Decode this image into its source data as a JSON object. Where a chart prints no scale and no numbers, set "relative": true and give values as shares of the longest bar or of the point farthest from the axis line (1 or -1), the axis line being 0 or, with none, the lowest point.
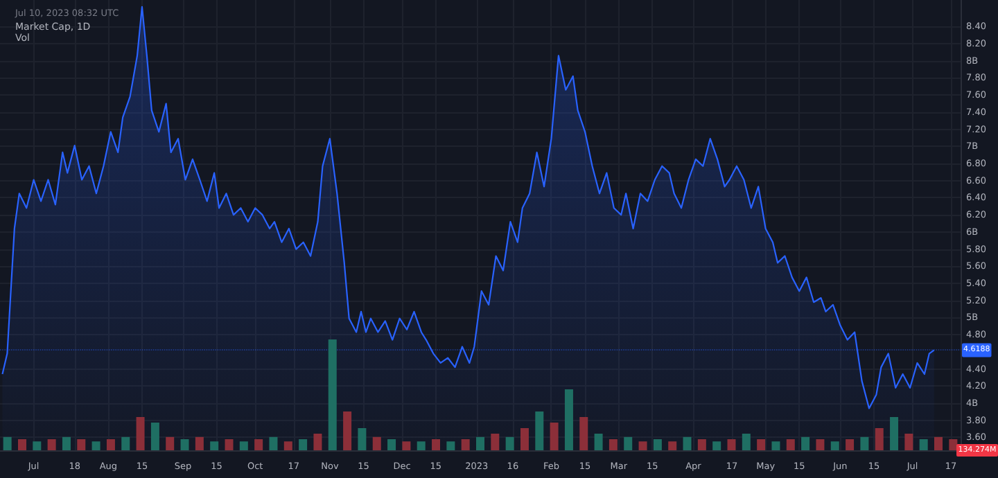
{
  "chart_data": [
    {
      "type": "area",
      "title": "Market Cap, 1D",
      "annotations": [
        "Jul 10, 2023 08:32 UTC"
      ],
      "ref_lines": [
        {
          "axis": "y",
          "value": 4.6188,
          "label": "4.6188",
          "color": "#2962ff",
          "line_style": "dotted"
        }
      ],
      "x": [
        "2022-06-18",
        "2022-06-20",
        "2022-06-23",
        "2022-06-25",
        "2022-06-28",
        "2022-07-01",
        "2022-07-04",
        "2022-07-07",
        "2022-07-10",
        "2022-07-13",
        "2022-07-15",
        "2022-07-18",
        "2022-07-21",
        "2022-07-24",
        "2022-07-27",
        "2022-07-30",
        "2022-08-02",
        "2022-08-05",
        "2022-08-07",
        "2022-08-10",
        "2022-08-13",
        "2022-08-15",
        "2022-08-17",
        "2022-08-19",
        "2022-08-22",
        "2022-08-25",
        "2022-08-27",
        "2022-08-30",
        "2022-09-02",
        "2022-09-05",
        "2022-09-08",
        "2022-09-11",
        "2022-09-14",
        "2022-09-16",
        "2022-09-19",
        "2022-09-22",
        "2022-09-25",
        "2022-09-28",
        "2022-10-01",
        "2022-10-04",
        "2022-10-07",
        "2022-10-09",
        "2022-10-12",
        "2022-10-15",
        "2022-10-18",
        "2022-10-21",
        "2022-10-24",
        "2022-10-27",
        "2022-10-29",
        "2022-11-01",
        "2022-11-04",
        "2022-11-07",
        "2022-11-09",
        "2022-11-12",
        "2022-11-14",
        "2022-11-16",
        "2022-11-18",
        "2022-11-21",
        "2022-11-24",
        "2022-11-27",
        "2022-11-30",
        "2022-12-03",
        "2022-12-06",
        "2022-12-09",
        "2022-12-11",
        "2022-12-14",
        "2022-12-17",
        "2022-12-20",
        "2022-12-23",
        "2022-12-26",
        "2022-12-29",
        "2022-12-31",
        "2023-01-03",
        "2023-01-06",
        "2023-01-09",
        "2023-01-12",
        "2023-01-15",
        "2023-01-18",
        "2023-01-20",
        "2023-01-23",
        "2023-01-26",
        "2023-01-29",
        "2023-02-01",
        "2023-02-04",
        "2023-02-07",
        "2023-02-10",
        "2023-02-12",
        "2023-02-15",
        "2023-02-18",
        "2023-02-21",
        "2023-02-24",
        "2023-02-27",
        "2023-03-02",
        "2023-03-04",
        "2023-03-07",
        "2023-03-10",
        "2023-03-13",
        "2023-03-16",
        "2023-03-19",
        "2023-03-22",
        "2023-03-24",
        "2023-03-27",
        "2023-03-30",
        "2023-04-02",
        "2023-04-05",
        "2023-04-08",
        "2023-04-11",
        "2023-04-14",
        "2023-04-16",
        "2023-04-19",
        "2023-04-22",
        "2023-04-25",
        "2023-04-28",
        "2023-05-01",
        "2023-05-04",
        "2023-05-06",
        "2023-05-09",
        "2023-05-12",
        "2023-05-15",
        "2023-05-18",
        "2023-05-21",
        "2023-05-24",
        "2023-05-26",
        "2023-05-29",
        "2023-06-01",
        "2023-06-04",
        "2023-06-07",
        "2023-06-10",
        "2023-06-13",
        "2023-06-16",
        "2023-06-18",
        "2023-06-21",
        "2023-06-24",
        "2023-06-27",
        "2023-06-30",
        "2023-07-03",
        "2023-07-06",
        "2023-07-08",
        "2023-07-10"
      ],
      "series": [
        {
          "color": "#2962ff",
          "values": [
            4.34,
            4.58,
            6.04,
            6.45,
            6.28,
            6.61,
            6.36,
            6.61,
            6.32,
            6.93,
            6.69,
            7.01,
            6.61,
            6.77,
            6.45,
            6.77,
            7.17,
            6.93,
            7.34,
            7.58,
            8.06,
            8.63,
            8.06,
            7.42,
            7.17,
            7.5,
            6.93,
            7.09,
            6.61,
            6.85,
            6.61,
            6.36,
            6.69,
            6.28,
            6.45,
            6.2,
            6.28,
            6.12,
            6.28,
            6.2,
            6.04,
            6.12,
            5.88,
            6.04,
            5.8,
            5.88,
            5.72,
            6.12,
            6.77,
            7.09,
            6.45,
            5.64,
            4.99,
            4.83,
            5.07,
            4.83,
            4.99,
            4.83,
            4.96,
            4.74,
            4.99,
            4.86,
            5.07,
            4.83,
            4.74,
            4.58,
            4.47,
            4.53,
            4.42,
            4.66,
            4.47,
            4.66,
            5.31,
            5.15,
            5.72,
            5.55,
            6.12,
            5.88,
            6.28,
            6.45,
            6.93,
            6.53,
            7.09,
            8.06,
            7.66,
            7.82,
            7.42,
            7.17,
            6.77,
            6.45,
            6.69,
            6.28,
            6.2,
            6.45,
            6.04,
            6.45,
            6.36,
            6.61,
            6.77,
            6.69,
            6.45,
            6.28,
            6.61,
            6.85,
            6.77,
            7.09,
            6.85,
            6.53,
            6.61,
            6.77,
            6.61,
            6.28,
            6.53,
            6.04,
            5.88,
            5.64,
            5.72,
            5.47,
            5.31,
            5.47,
            5.18,
            5.23,
            5.07,
            5.15,
            4.91,
            4.74,
            4.83,
            4.26,
            3.94,
            4.1,
            4.42,
            4.58,
            4.18,
            4.34,
            4.18,
            4.47,
            4.34,
            4.58,
            4.62
          ]
        }
      ],
      "xlim": [
        "2022-06-17",
        "2023-07-21"
      ],
      "xticks": [
        {
          "value": "2022-07-01",
          "label": "Jul"
        },
        {
          "value": "2022-07-18",
          "label": "18"
        },
        {
          "value": "2022-08-01",
          "label": "Aug"
        },
        {
          "value": "2022-08-15",
          "label": "15"
        },
        {
          "value": "2022-09-01",
          "label": "Sep"
        },
        {
          "value": "2022-09-15",
          "label": "15"
        },
        {
          "value": "2022-10-01",
          "label": "Oct"
        },
        {
          "value": "2022-10-17",
          "label": "17"
        },
        {
          "value": "2022-11-01",
          "label": "Nov"
        },
        {
          "value": "2022-11-15",
          "label": "15"
        },
        {
          "value": "2022-12-01",
          "label": "Dec"
        },
        {
          "value": "2022-12-15",
          "label": "15"
        },
        {
          "value": "2023-01-01",
          "label": "2023"
        },
        {
          "value": "2023-01-16",
          "label": "16"
        },
        {
          "value": "2023-02-01",
          "label": "Feb"
        },
        {
          "value": "2023-02-15",
          "label": "15"
        },
        {
          "value": "2023-03-01",
          "label": "Mar"
        },
        {
          "value": "2023-03-15",
          "label": "15"
        },
        {
          "value": "2023-04-01",
          "label": "Apr"
        },
        {
          "value": "2023-04-17",
          "label": "17"
        },
        {
          "value": "2023-05-01",
          "label": "May"
        },
        {
          "value": "2023-05-15",
          "label": "15"
        },
        {
          "value": "2023-06-01",
          "label": "Jun"
        },
        {
          "value": "2023-06-15",
          "label": "15"
        },
        {
          "value": "2023-07-01",
          "label": "Jul"
        },
        {
          "value": "2023-07-17",
          "label": "17"
        }
      ],
      "ylim": [
        3.45,
        8.71
      ],
      "yticks": [
        {
          "value": 3.6,
          "label": "3.60"
        },
        {
          "value": 3.8,
          "label": "3.80"
        },
        {
          "value": 4,
          "label": "4B"
        },
        {
          "value": 4.2,
          "label": "4.20"
        },
        {
          "value": 4.4,
          "label": "4.40"
        },
        {
          "value": 4.8,
          "label": "4.80"
        },
        {
          "value": 5,
          "label": "5B"
        },
        {
          "value": 5.2,
          "label": "5.20"
        },
        {
          "value": 5.4,
          "label": "5.40"
        },
        {
          "value": 5.6,
          "label": "5.60"
        },
        {
          "value": 5.8,
          "label": "5.80"
        },
        {
          "value": 6,
          "label": "6B"
        },
        {
          "value": 6.2,
          "label": "6.20"
        },
        {
          "value": 6.4,
          "label": "6.40"
        },
        {
          "value": 6.6,
          "label": "6.60"
        },
        {
          "value": 6.8,
          "label": "6.80"
        },
        {
          "value": 7,
          "label": "7B"
        },
        {
          "value": 7.2,
          "label": "7.20"
        },
        {
          "value": 7.4,
          "label": "7.40"
        },
        {
          "value": 7.6,
          "label": "7.60"
        },
        {
          "value": 7.8,
          "label": "7.80"
        },
        {
          "value": 8,
          "label": "8B"
        },
        {
          "value": 8.2,
          "label": "8.20"
        },
        {
          "value": 8.4,
          "label": "8.40"
        }
      ],
      "grid": true
    },
    {
      "type": "bar",
      "title": "Vol",
      "relative": true,
      "annotations": [
        "134.274M"
      ],
      "categories": [
        null,
        null,
        null,
        null,
        null,
        null,
        null,
        null,
        null,
        null,
        null,
        null,
        null,
        null,
        null,
        null,
        null,
        null,
        null,
        null,
        null,
        null,
        null,
        null,
        null,
        null,
        null,
        null,
        null,
        null,
        null,
        null,
        null,
        null,
        null,
        null,
        null,
        null,
        null,
        null,
        null,
        null,
        null,
        null,
        null,
        null,
        null,
        null,
        null,
        null,
        null,
        null,
        null,
        null,
        null,
        null,
        null,
        null,
        null,
        null,
        null,
        null,
        null,
        null,
        null
      ],
      "values": [
        0.12,
        0.1,
        0.08,
        0.1,
        0.12,
        0.1,
        0.08,
        0.1,
        0.12,
        0.3,
        0.25,
        0.12,
        0.1,
        0.12,
        0.08,
        0.1,
        0.08,
        0.1,
        0.12,
        0.08,
        0.1,
        0.15,
        1,
        0.35,
        0.2,
        0.12,
        0.1,
        0.08,
        0.08,
        0.1,
        0.08,
        0.1,
        0.12,
        0.15,
        0.12,
        0.2,
        0.35,
        0.25,
        0.55,
        0.3,
        0.15,
        0.1,
        0.12,
        0.08,
        0.1,
        0.08,
        0.12,
        0.1,
        0.08,
        0.1,
        0.15,
        0.1,
        0.08,
        0.1,
        0.12,
        0.1,
        0.08,
        0.1,
        0.12,
        0.2,
        0.3,
        0.15,
        0.1,
        0.12,
        0.1
      ],
      "colors": [
        "#1f6f63",
        "#8c2f39",
        "#1f6f63",
        "#8c2f39",
        "#1f6f63",
        "#8c2f39",
        "#1f6f63",
        "#8c2f39",
        "#1f6f63",
        "#8c2f39",
        "#1f6f63",
        "#8c2f39",
        "#1f6f63",
        "#8c2f39",
        "#1f6f63",
        "#8c2f39",
        "#1f6f63",
        "#8c2f39",
        "#1f6f63",
        "#8c2f39",
        "#1f6f63",
        "#8c2f39",
        "#1f6f63",
        "#8c2f39",
        "#1f6f63",
        "#8c2f39",
        "#1f6f63",
        "#8c2f39",
        "#1f6f63",
        "#8c2f39",
        "#1f6f63",
        "#8c2f39",
        "#1f6f63",
        "#8c2f39",
        "#1f6f63",
        "#8c2f39",
        "#1f6f63",
        "#8c2f39",
        "#1f6f63",
        "#8c2f39",
        "#1f6f63",
        "#8c2f39",
        "#1f6f63",
        "#8c2f39",
        "#1f6f63",
        "#8c2f39",
        "#1f6f63",
        "#8c2f39",
        "#1f6f63",
        "#8c2f39",
        "#1f6f63",
        "#8c2f39",
        "#1f6f63",
        "#8c2f39",
        "#1f6f63",
        "#8c2f39",
        "#1f6f63",
        "#8c2f39",
        "#1f6f63",
        "#8c2f39",
        "#1f6f63",
        "#8c2f39",
        "#1f6f63",
        "#8c2f39",
        "#8c2f39"
      ]
    }
  ]
}
